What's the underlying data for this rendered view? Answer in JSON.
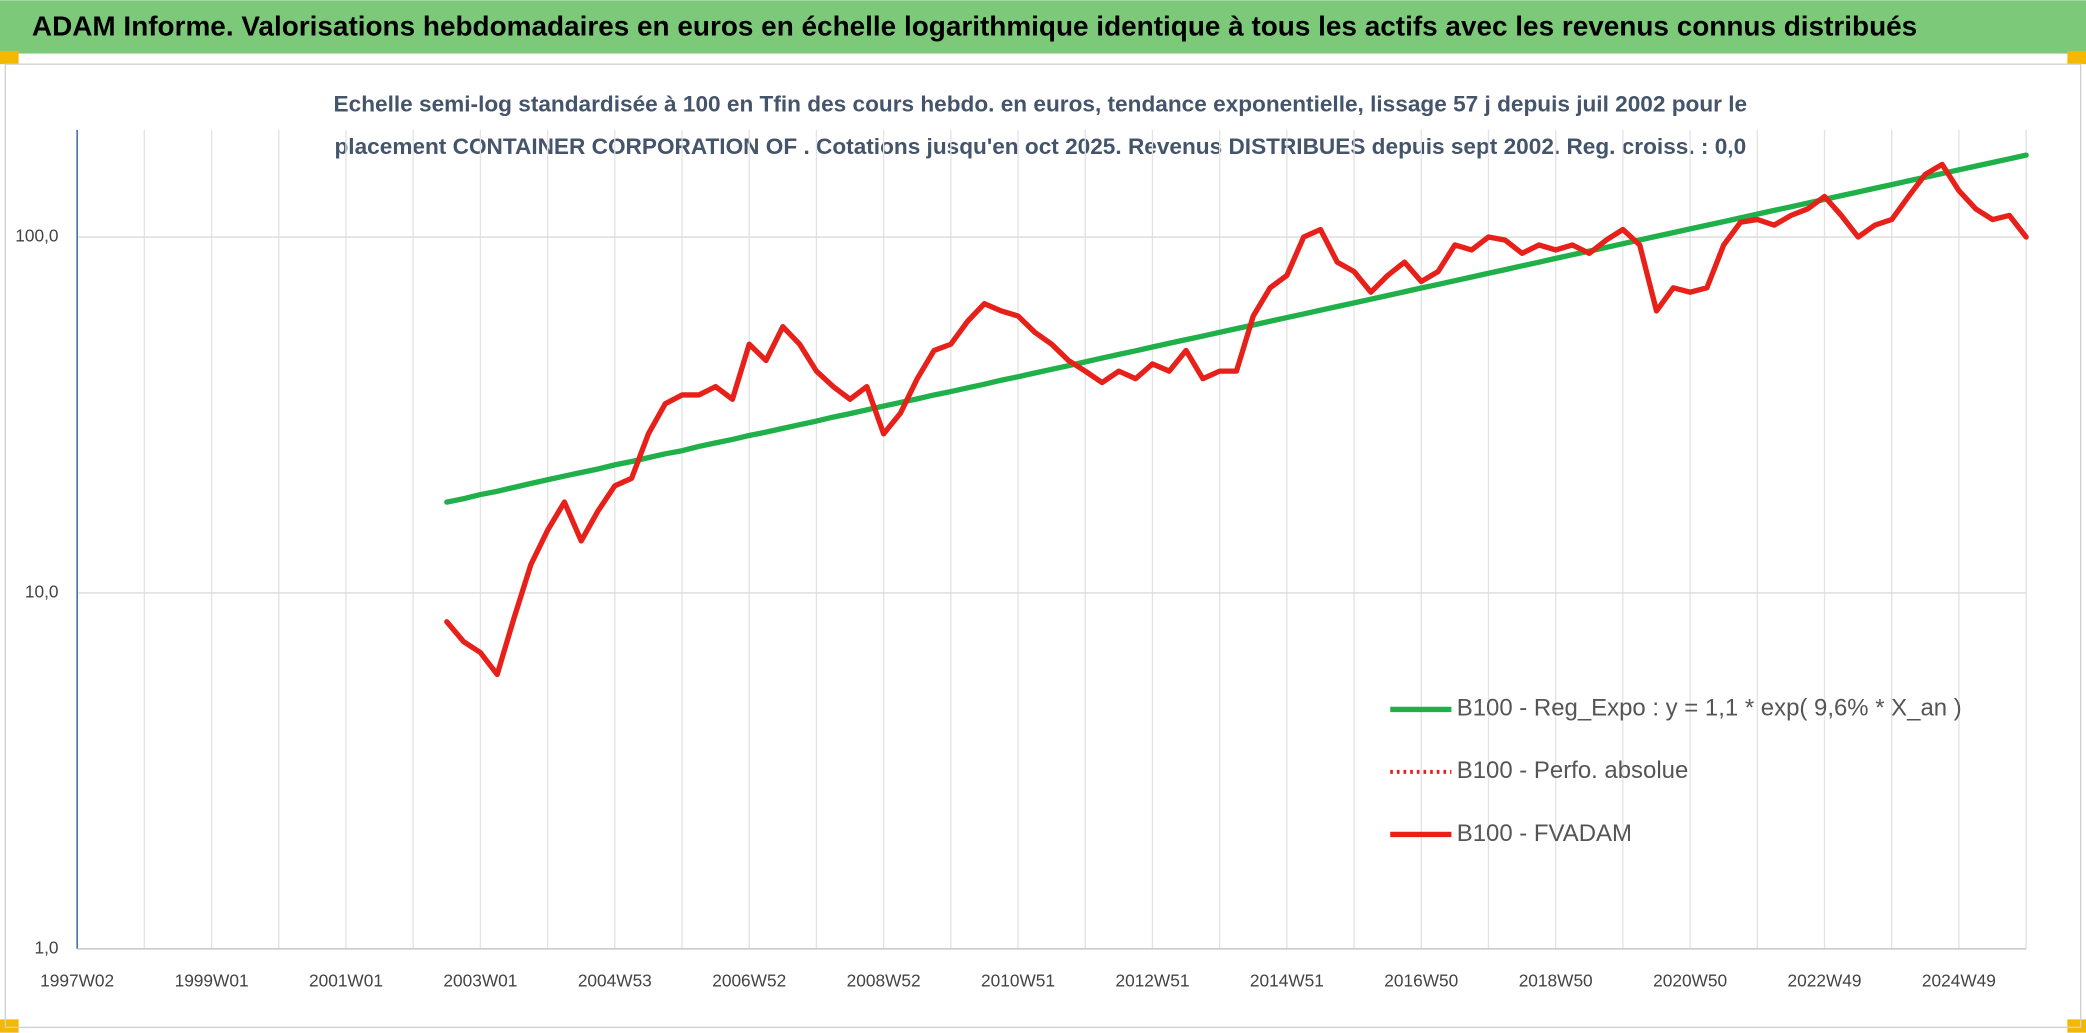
{
  "chart_data": {
    "type": "line",
    "title": "ADAM Informe. Valorisations hebdomadaires en euros en échelle logarithmique identique à tous les actifs avec les revenus connus distribués",
    "subtitle": [
      "Echelle semi-log standardisée à 100 en Tfin des cours hebdo. en euros, tendance exponentielle, lissage 57 j depuis juil 2002 pour le",
      "placement CONTAINER CORPORATION OF . Cotations jusqu'en oct 2025. Revenus DISTRIBUES depuis sept 2002. Reg. croiss. : 0,0"
    ],
    "log_scale": true,
    "grid": true,
    "legend_position": "right",
    "ylim": [
      1,
      200
    ],
    "yticks": [
      {
        "value": 1,
        "label": "1,0"
      },
      {
        "value": 10,
        "label": "10,0"
      },
      {
        "value": 100,
        "label": "100,0"
      }
    ],
    "categories": [
      "1997W02",
      null,
      null,
      null,
      null,
      null,
      null,
      null,
      "1999W01",
      null,
      null,
      null,
      null,
      null,
      null,
      null,
      "2001W01",
      null,
      null,
      null,
      null,
      null,
      null,
      null,
      "2003W01",
      null,
      null,
      null,
      null,
      null,
      null,
      null,
      "2004W53",
      null,
      null,
      null,
      null,
      null,
      null,
      null,
      "2006W52",
      null,
      null,
      null,
      null,
      null,
      null,
      null,
      "2008W52",
      null,
      null,
      null,
      null,
      null,
      null,
      null,
      "2010W51",
      null,
      null,
      null,
      null,
      null,
      null,
      null,
      "2012W51",
      null,
      null,
      null,
      null,
      null,
      null,
      null,
      "2014W51",
      null,
      null,
      null,
      null,
      null,
      null,
      null,
      "2016W50",
      null,
      null,
      null,
      null,
      null,
      null,
      null,
      "2018W50",
      null,
      null,
      null,
      null,
      null,
      null,
      null,
      "2020W50",
      null,
      null,
      null,
      null,
      null,
      null,
      null,
      "2022W49",
      null,
      null,
      null,
      null,
      null,
      null,
      null,
      "2024W49",
      null,
      null,
      null,
      null
    ],
    "series": [
      {
        "name": "B100 - Reg_Expo : y = 1,1 * exp( 9,6% *  X_an )",
        "color": "#1fb04a",
        "style": "solid",
        "values": [
          null,
          null,
          null,
          null,
          null,
          null,
          null,
          null,
          null,
          null,
          null,
          null,
          null,
          null,
          null,
          null,
          null,
          null,
          null,
          null,
          null,
          null,
          18.0,
          18.4,
          18.9,
          19.3,
          19.8,
          20.3,
          20.8,
          21.3,
          21.8,
          22.3,
          22.9,
          23.4,
          24.0,
          24.6,
          25.1,
          25.8,
          26.4,
          27.0,
          27.7,
          28.3,
          29.0,
          29.7,
          30.4,
          31.2,
          31.9,
          32.7,
          33.5,
          34.3,
          35.1,
          36.0,
          36.8,
          37.7,
          38.6,
          39.6,
          40.5,
          41.5,
          42.5,
          43.5,
          44.6,
          45.7,
          46.8,
          47.9,
          49.1,
          50.3,
          51.5,
          52.7,
          54.0,
          55.3,
          56.6,
          58.0,
          59.4,
          60.8,
          62.3,
          63.8,
          65.3,
          66.9,
          68.5,
          70.2,
          71.9,
          73.6,
          75.4,
          77.2,
          79.1,
          81.0,
          83.0,
          85.0,
          87.1,
          89.2,
          91.3,
          93.5,
          95.8,
          98.1,
          100.5,
          102.9,
          105.4,
          107.9,
          110.5,
          113.2,
          116.0,
          118.8,
          121.6,
          124.6,
          127.6,
          130.7,
          133.8,
          137.1,
          140.4,
          143.8,
          147.2,
          150.8,
          154.5,
          158.2,
          162.0,
          165.9,
          169.9
        ]
      },
      {
        "name": "B100 - Perfo. absolue",
        "color": "#e8201a",
        "style": "dotted",
        "values": [
          null,
          null,
          null,
          null,
          null,
          null,
          null,
          null,
          null,
          null,
          null,
          null,
          null,
          null,
          null,
          null,
          null,
          null,
          null,
          null,
          null,
          null,
          8.3,
          7.3,
          6.8,
          5.9,
          8.5,
          12,
          15,
          18,
          14,
          17,
          20,
          21,
          28,
          34,
          36,
          36,
          38,
          35,
          50,
          45,
          56,
          50,
          42,
          38,
          35,
          38,
          28,
          32,
          40,
          48,
          50,
          58,
          65,
          62,
          60,
          54,
          50,
          45,
          42,
          39,
          42,
          40,
          44,
          42,
          48,
          40,
          42,
          42,
          60,
          72,
          78,
          100,
          105,
          85,
          80,
          70,
          78,
          85,
          75,
          80,
          95,
          92,
          100,
          98,
          90,
          95,
          92,
          95,
          90,
          98,
          105,
          95,
          62,
          72,
          70,
          72,
          95,
          110,
          112,
          108,
          115,
          120,
          130,
          115,
          100,
          108,
          112,
          130,
          150,
          160,
          135,
          120,
          112,
          115,
          100
        ]
      },
      {
        "name": "B100 - FVADAM",
        "color": "#e8201a",
        "style": "solid",
        "values": [
          null,
          null,
          null,
          null,
          null,
          null,
          null,
          null,
          null,
          null,
          null,
          null,
          null,
          null,
          null,
          null,
          null,
          null,
          null,
          null,
          null,
          null,
          8.3,
          7.3,
          6.8,
          5.9,
          8.5,
          12,
          15,
          18,
          14,
          17,
          20,
          21,
          28,
          34,
          36,
          36,
          38,
          35,
          50,
          45,
          56,
          50,
          42,
          38,
          35,
          38,
          28,
          32,
          40,
          48,
          50,
          58,
          65,
          62,
          60,
          54,
          50,
          45,
          42,
          39,
          42,
          40,
          44,
          42,
          48,
          40,
          42,
          42,
          60,
          72,
          78,
          100,
          105,
          85,
          80,
          70,
          78,
          85,
          75,
          80,
          95,
          92,
          100,
          98,
          90,
          95,
          92,
          95,
          90,
          98,
          105,
          95,
          62,
          72,
          70,
          72,
          95,
          110,
          112,
          108,
          115,
          120,
          130,
          115,
          100,
          108,
          112,
          130,
          150,
          160,
          135,
          120,
          112,
          115,
          100
        ]
      }
    ]
  }
}
